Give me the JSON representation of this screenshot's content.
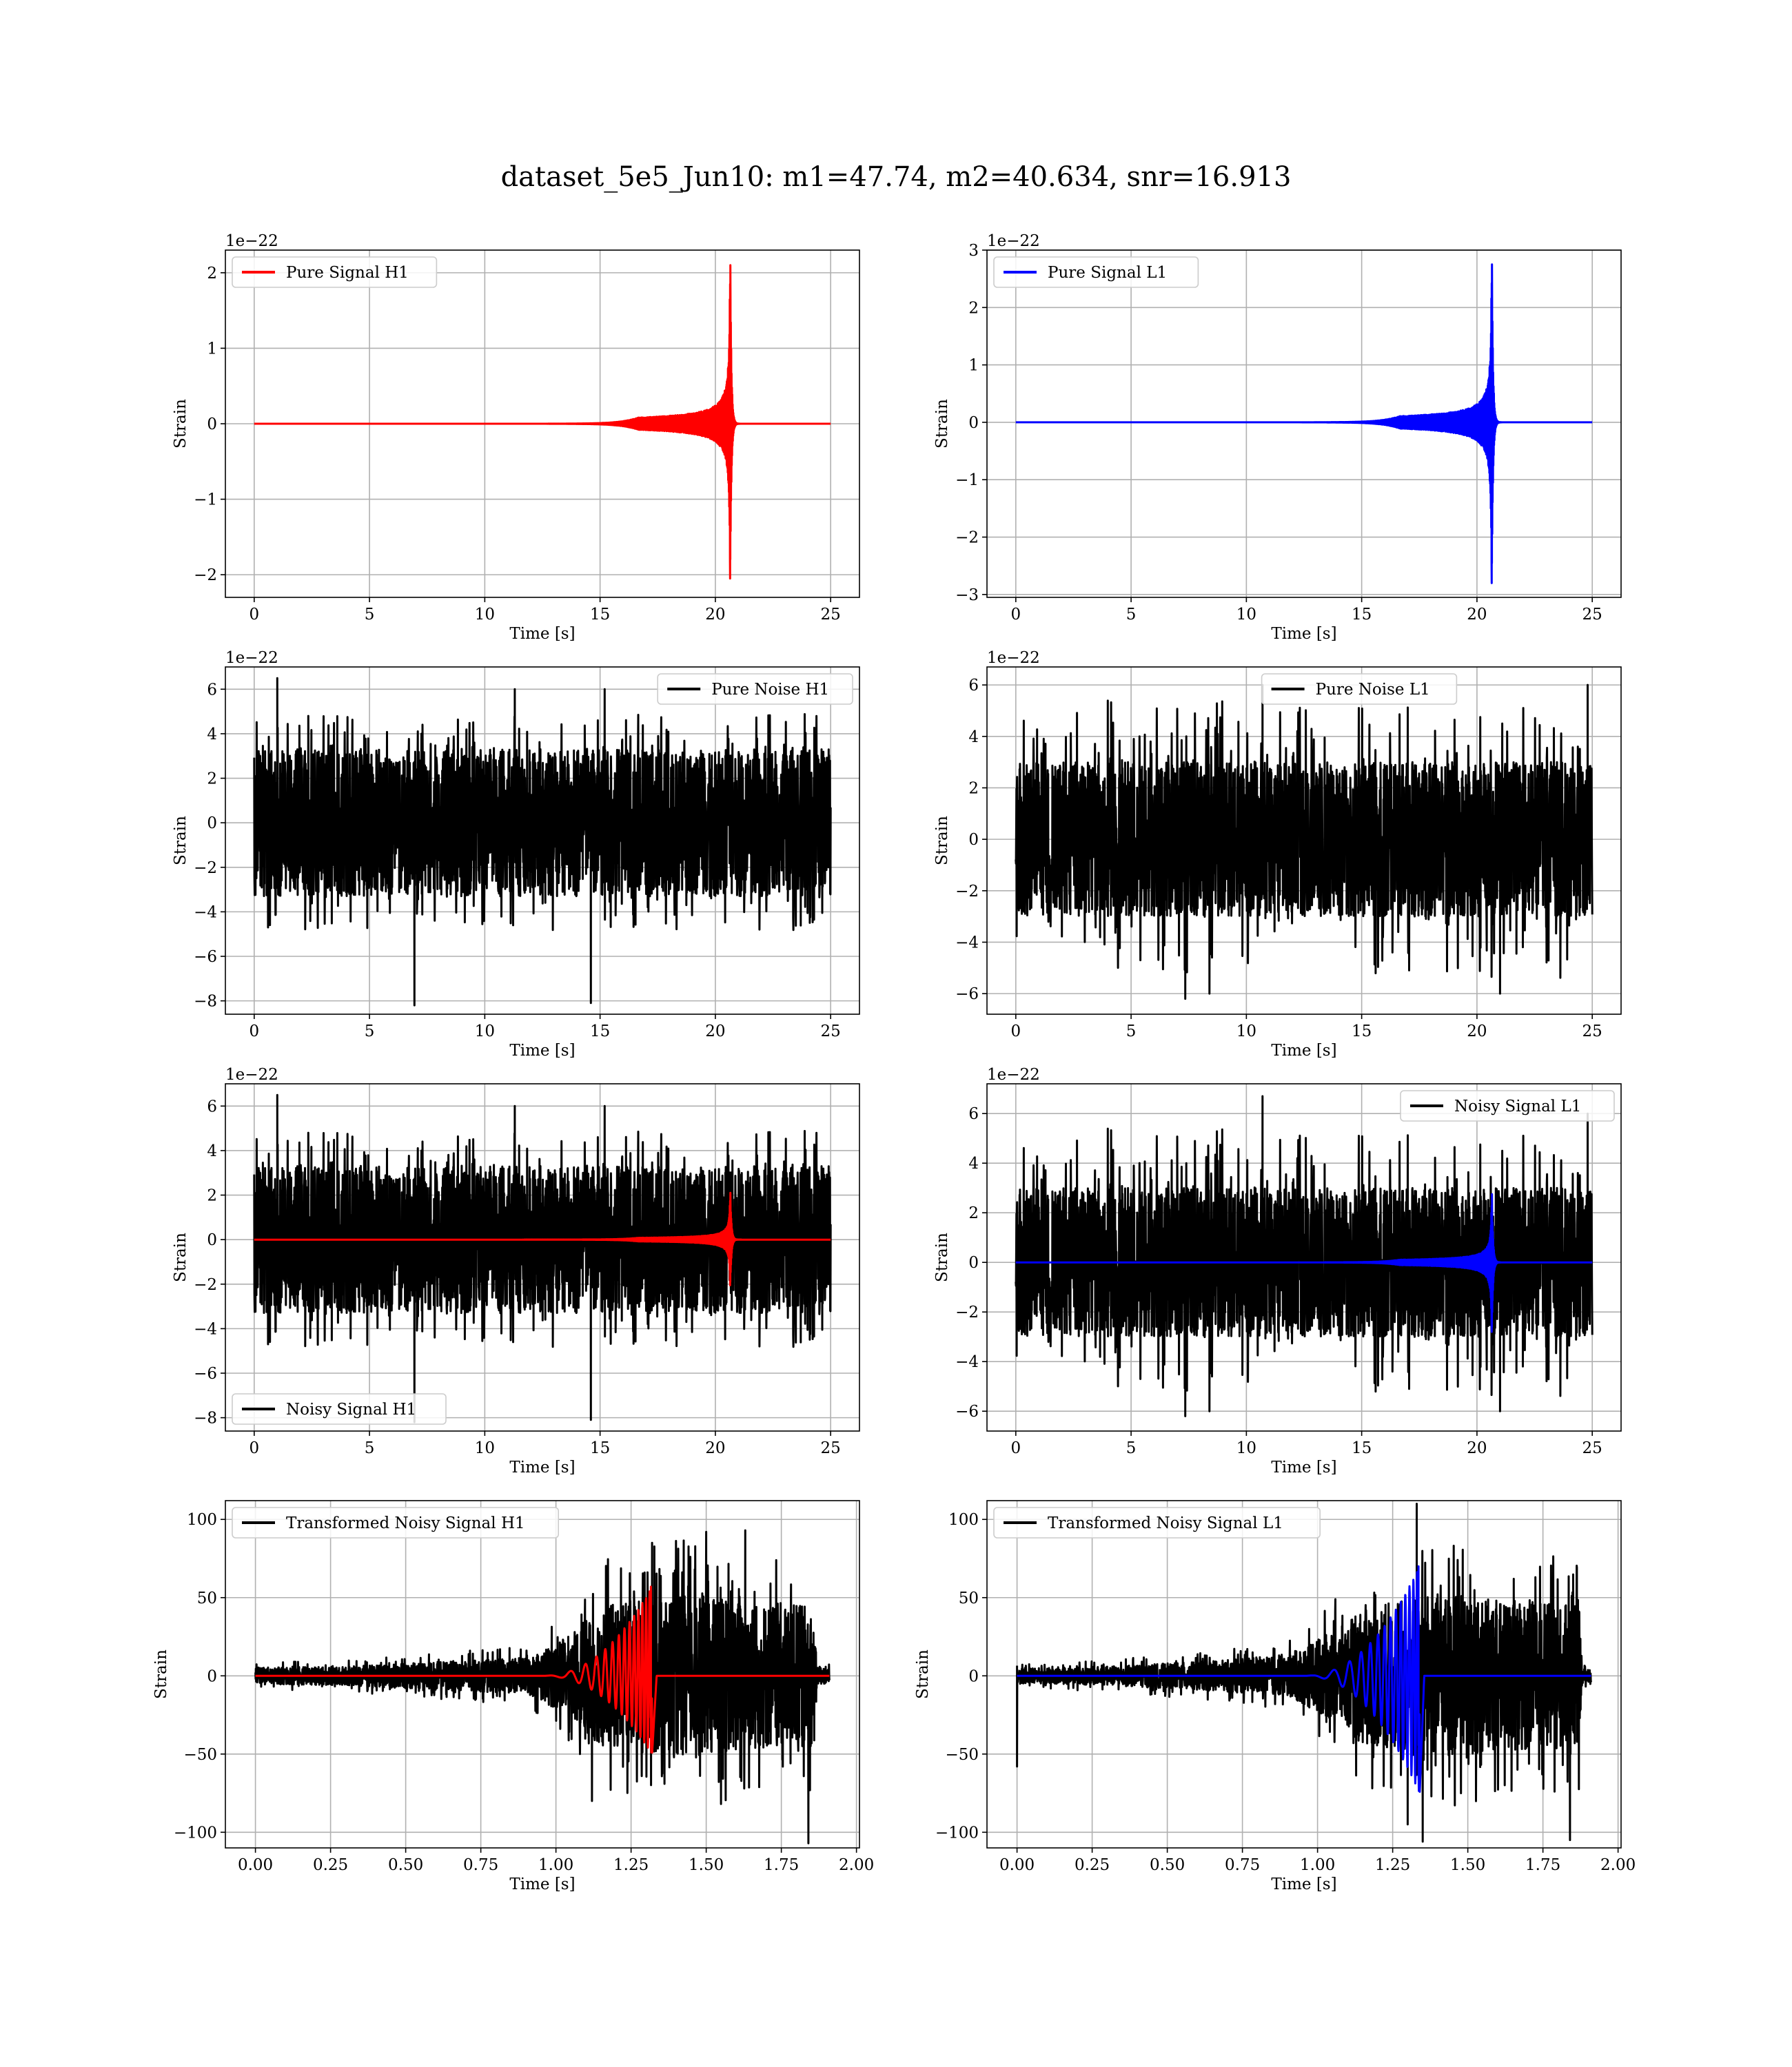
{
  "suptitle": "dataset_5e5_Jun10: m1=47.74, m2=40.634, snr=16.913",
  "chart_data": [
    {
      "id": "pure-signal-h1",
      "type": "line",
      "xlabel": "Time [s]",
      "ylabel": "Strain",
      "offset_text": "1e−22",
      "xlim": [
        -1.25,
        26.25
      ],
      "ylim": [
        -2.3,
        2.3
      ],
      "xticks": [
        0,
        5,
        10,
        15,
        20,
        25
      ],
      "xtick_labels": [
        "0",
        "5",
        "10",
        "15",
        "20",
        "25"
      ],
      "yticks": [
        -2,
        -1,
        0,
        1,
        2
      ],
      "ytick_labels": [
        "−2",
        "−1",
        "0",
        "1",
        "2"
      ],
      "grid": true,
      "legend_position": "upper-left",
      "legend": [
        {
          "label": "Pure Signal H1",
          "color": "#ff0000"
        }
      ],
      "series": [
        {
          "kind": "chirp",
          "color": "#ff0000",
          "x_start": 0,
          "x_end": 25,
          "merger": 20.65,
          "peak": 2.1,
          "trough": -2.05,
          "ringdown": 0.15,
          "name": "Pure Signal H1"
        }
      ]
    },
    {
      "id": "pure-signal-l1",
      "type": "line",
      "xlabel": "Time [s]",
      "ylabel": "Strain",
      "offset_text": "1e−22",
      "xlim": [
        -1.25,
        26.25
      ],
      "ylim": [
        -3.05,
        3.0
      ],
      "xticks": [
        0,
        5,
        10,
        15,
        20,
        25
      ],
      "xtick_labels": [
        "0",
        "5",
        "10",
        "15",
        "20",
        "25"
      ],
      "yticks": [
        -3,
        -2,
        -1,
        0,
        1,
        2,
        3
      ],
      "ytick_labels": [
        "−3",
        "−2",
        "−1",
        "0",
        "1",
        "2",
        "3"
      ],
      "grid": true,
      "legend_position": "upper-left",
      "legend": [
        {
          "label": "Pure Signal L1",
          "color": "#0000ff"
        }
      ],
      "series": [
        {
          "kind": "chirp",
          "color": "#0000ff",
          "x_start": 0,
          "x_end": 25,
          "merger": 20.65,
          "peak": 2.75,
          "trough": -2.8,
          "ringdown": 0.15,
          "name": "Pure Signal L1"
        }
      ]
    },
    {
      "id": "pure-noise-h1",
      "type": "line",
      "xlabel": "Time [s]",
      "ylabel": "Strain",
      "offset_text": "1e−22",
      "xlim": [
        -1.25,
        26.25
      ],
      "ylim": [
        -8.6,
        7.0
      ],
      "xticks": [
        0,
        5,
        10,
        15,
        20,
        25
      ],
      "xtick_labels": [
        "0",
        "5",
        "10",
        "15",
        "20",
        "25"
      ],
      "yticks": [
        -8,
        -6,
        -4,
        -2,
        0,
        2,
        4,
        6
      ],
      "ytick_labels": [
        "−8",
        "−6",
        "−4",
        "−2",
        "0",
        "2",
        "4",
        "6"
      ],
      "grid": true,
      "legend_position": "upper-right",
      "legend": [
        {
          "label": "Pure Noise H1",
          "color": "#000000"
        }
      ],
      "series": [
        {
          "kind": "noise",
          "color": "#000000",
          "x_start": 0,
          "x_end": 25,
          "band": 3.3,
          "spike_max": 4.9,
          "spike_min": -4.9,
          "extremes": [
            [
              1.0,
              6.5
            ],
            [
              6.95,
              -8.2
            ],
            [
              14.6,
              -8.1
            ],
            [
              11.3,
              6.0
            ],
            [
              15.2,
              6.0
            ],
            [
              0.6,
              -4.7
            ]
          ],
          "seed": 11,
          "name": "Pure Noise H1"
        }
      ]
    },
    {
      "id": "pure-noise-l1",
      "type": "line",
      "xlabel": "Time [s]",
      "ylabel": "Strain",
      "offset_text": "1e−22",
      "xlim": [
        -1.25,
        26.25
      ],
      "ylim": [
        -6.8,
        6.7
      ],
      "xticks": [
        0,
        5,
        10,
        15,
        20,
        25
      ],
      "xtick_labels": [
        "0",
        "5",
        "10",
        "15",
        "20",
        "25"
      ],
      "yticks": [
        -6,
        -4,
        -2,
        0,
        2,
        4,
        6
      ],
      "ytick_labels": [
        "−6",
        "−4",
        "−2",
        "0",
        "2",
        "4",
        "6"
      ],
      "grid": true,
      "legend_position": "upper-center",
      "legend": [
        {
          "label": "Pure Noise L1",
          "color": "#000000"
        }
      ],
      "series": [
        {
          "kind": "noise",
          "color": "#000000",
          "x_start": 0,
          "x_end": 25,
          "band": 3.0,
          "spike_max": 5.2,
          "spike_min": -5.4,
          "extremes": [
            [
              24.8,
              6.0
            ],
            [
              7.35,
              -6.2
            ],
            [
              10.7,
              6.0
            ],
            [
              8.4,
              -6.0
            ],
            [
              21.0,
              -6.0
            ]
          ],
          "seed": 23,
          "name": "Pure Noise L1"
        }
      ]
    },
    {
      "id": "noisy-signal-h1",
      "type": "line",
      "xlabel": "Time [s]",
      "ylabel": "Strain",
      "offset_text": "1e−22",
      "xlim": [
        -1.25,
        26.25
      ],
      "ylim": [
        -8.6,
        7.0
      ],
      "xticks": [
        0,
        5,
        10,
        15,
        20,
        25
      ],
      "xtick_labels": [
        "0",
        "5",
        "10",
        "15",
        "20",
        "25"
      ],
      "yticks": [
        -8,
        -6,
        -4,
        -2,
        0,
        2,
        4,
        6
      ],
      "ytick_labels": [
        "−8",
        "−6",
        "−4",
        "−2",
        "0",
        "2",
        "4",
        "6"
      ],
      "grid": true,
      "legend_position": "lower-left",
      "legend": [
        {
          "label": "Noisy Signal H1",
          "color": "#000000"
        }
      ],
      "series": [
        {
          "kind": "noise",
          "color": "#000000",
          "x_start": 0,
          "x_end": 25,
          "band": 3.3,
          "spike_max": 4.9,
          "spike_min": -4.9,
          "extremes": [
            [
              1.0,
              6.5
            ],
            [
              6.95,
              -8.2
            ],
            [
              14.6,
              -8.1
            ],
            [
              11.3,
              6.0
            ],
            [
              15.2,
              6.0
            ],
            [
              0.6,
              -4.7
            ]
          ],
          "seed": 11,
          "name": "Noisy Signal H1"
        },
        {
          "kind": "chirp",
          "color": "#ff0000",
          "x_start": 0,
          "x_end": 25,
          "merger": 20.65,
          "peak": 2.1,
          "trough": -2.05,
          "ringdown": 0.15,
          "name": "Pure Signal H1"
        }
      ]
    },
    {
      "id": "noisy-signal-l1",
      "type": "line",
      "xlabel": "Time [s]",
      "ylabel": "Strain",
      "offset_text": "1e−22",
      "xlim": [
        -1.25,
        26.25
      ],
      "ylim": [
        -6.8,
        7.2
      ],
      "xticks": [
        0,
        5,
        10,
        15,
        20,
        25
      ],
      "xtick_labels": [
        "0",
        "5",
        "10",
        "15",
        "20",
        "25"
      ],
      "yticks": [
        -6,
        -4,
        -2,
        0,
        2,
        4,
        6
      ],
      "ytick_labels": [
        "−6",
        "−4",
        "−2",
        "0",
        "2",
        "4",
        "6"
      ],
      "grid": true,
      "legend_position": "upper-right",
      "legend": [
        {
          "label": "Noisy Signal L1",
          "color": "#000000"
        }
      ],
      "series": [
        {
          "kind": "noise",
          "color": "#000000",
          "x_start": 0,
          "x_end": 25,
          "band": 3.0,
          "spike_max": 5.2,
          "spike_min": -5.4,
          "extremes": [
            [
              10.7,
              6.7
            ],
            [
              24.8,
              6.0
            ],
            [
              7.35,
              -6.2
            ],
            [
              8.4,
              -6.0
            ],
            [
              21.0,
              -6.0
            ]
          ],
          "seed": 23,
          "name": "Noisy Signal L1"
        },
        {
          "kind": "chirp",
          "color": "#0000ff",
          "x_start": 0,
          "x_end": 25,
          "merger": 20.65,
          "peak": 2.75,
          "trough": -2.8,
          "ringdown": 0.15,
          "name": "Pure Signal L1"
        }
      ]
    },
    {
      "id": "transformed-noisy-signal-h1",
      "type": "line",
      "xlabel": "Time [s]",
      "ylabel": "Strain",
      "offset_text": "",
      "xlim": [
        -0.1,
        2.01
      ],
      "ylim": [
        -110,
        112
      ],
      "xticks": [
        0.0,
        0.25,
        0.5,
        0.75,
        1.0,
        1.25,
        1.5,
        1.75,
        2.0
      ],
      "xtick_labels": [
        "0.00",
        "0.25",
        "0.50",
        "0.75",
        "1.00",
        "1.25",
        "1.50",
        "1.75",
        "2.00"
      ],
      "yticks": [
        -100,
        -50,
        0,
        50,
        100
      ],
      "ytick_labels": [
        "−100",
        "−50",
        "0",
        "50",
        "100"
      ],
      "grid": true,
      "legend_position": "upper-left",
      "legend": [
        {
          "label": "Transformed Noisy Signal H1",
          "color": "#000000"
        }
      ],
      "series": [
        {
          "kind": "tnoise",
          "color": "#000000",
          "x_start": 0.0,
          "x_end": 1.91,
          "knots": [
            [
              0.0,
              7
            ],
            [
              0.3,
              8
            ],
            [
              0.6,
              12
            ],
            [
              0.9,
              15
            ],
            [
              1.05,
              35
            ],
            [
              1.15,
              60
            ],
            [
              1.4,
              70
            ],
            [
              1.6,
              65
            ],
            [
              1.85,
              60
            ],
            [
              1.87,
              8
            ],
            [
              1.91,
              6
            ]
          ],
          "extremes": [
            [
              1.84,
              -107
            ],
            [
              1.32,
              85
            ],
            [
              1.5,
              92
            ],
            [
              1.63,
              93
            ],
            [
              1.12,
              -80
            ]
          ],
          "seed": 37,
          "name": "Transformed Noisy Signal H1"
        },
        {
          "kind": "tchirp",
          "color": "#ff0000",
          "x_start": 0.0,
          "x_end": 1.91,
          "merger": 1.32,
          "onset": 0.95,
          "peak": 57,
          "trough": -50,
          "name": "Pure Signal H1"
        }
      ]
    },
    {
      "id": "transformed-noisy-signal-l1",
      "type": "line",
      "xlabel": "Time [s]",
      "ylabel": "Strain",
      "offset_text": "",
      "xlim": [
        -0.1,
        2.01
      ],
      "ylim": [
        -110,
        112
      ],
      "xticks": [
        0.0,
        0.25,
        0.5,
        0.75,
        1.0,
        1.25,
        1.5,
        1.75,
        2.0
      ],
      "xtick_labels": [
        "0.00",
        "0.25",
        "0.50",
        "0.75",
        "1.00",
        "1.25",
        "1.50",
        "1.75",
        "2.00"
      ],
      "yticks": [
        -100,
        -50,
        0,
        50,
        100
      ],
      "ytick_labels": [
        "−100",
        "−50",
        "0",
        "50",
        "100"
      ],
      "grid": true,
      "legend_position": "upper-left",
      "legend": [
        {
          "label": "Transformed Noisy Signal L1",
          "color": "#000000"
        }
      ],
      "series": [
        {
          "kind": "tnoise",
          "color": "#000000",
          "x_start": 0.0,
          "x_end": 1.91,
          "knots": [
            [
              0.0,
              6
            ],
            [
              0.3,
              8
            ],
            [
              0.6,
              12
            ],
            [
              0.9,
              17
            ],
            [
              1.1,
              45
            ],
            [
              1.15,
              60
            ],
            [
              1.4,
              70
            ],
            [
              1.6,
              65
            ],
            [
              1.87,
              60
            ],
            [
              1.88,
              6
            ],
            [
              1.91,
              5
            ]
          ],
          "extremes": [
            [
              0.0,
              -58
            ],
            [
              1.35,
              -106
            ],
            [
              1.33,
              110
            ],
            [
              1.84,
              -105
            ],
            [
              1.3,
              -95
            ]
          ],
          "seed": 53,
          "name": "Transformed Noisy Signal L1"
        },
        {
          "kind": "tchirp",
          "color": "#0000ff",
          "x_start": 0.0,
          "x_end": 1.91,
          "merger": 1.34,
          "onset": 0.95,
          "peak": 70,
          "trough": -75,
          "name": "Pure Signal L1"
        }
      ]
    }
  ]
}
